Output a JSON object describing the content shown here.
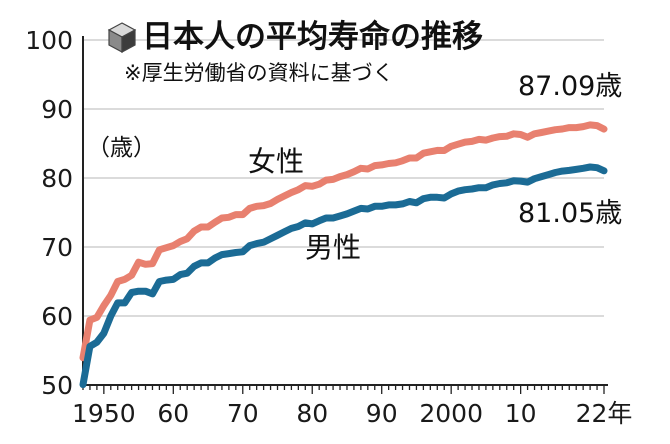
{
  "chart_data": {
    "type": "line",
    "title": "日本人の平均寿命の推移",
    "subtitle": "※厚生労働省の資料に基づく",
    "unit_label": "（歳）",
    "ylim": [
      50,
      100
    ],
    "yticks": [
      50,
      60,
      70,
      80,
      90,
      100
    ],
    "xlim": [
      1947,
      2022
    ],
    "xticks": [
      {
        "value": 1950,
        "label": "1950"
      },
      {
        "value": 1960,
        "label": "60"
      },
      {
        "value": 1970,
        "label": "70"
      },
      {
        "value": 1980,
        "label": "80"
      },
      {
        "value": 1990,
        "label": "90"
      },
      {
        "value": 2000,
        "label": "2000"
      },
      {
        "value": 2010,
        "label": "10"
      },
      {
        "value": 2022,
        "label": "22年"
      }
    ],
    "grid": true,
    "series": [
      {
        "name": "女性",
        "color": "#e8806f",
        "end_label": "87.09歳",
        "points": [
          [
            1947,
            53.96
          ],
          [
            1948,
            59.4
          ],
          [
            1949,
            59.8
          ],
          [
            1950,
            61.5
          ],
          [
            1951,
            63.0
          ],
          [
            1952,
            65.0
          ],
          [
            1953,
            65.3
          ],
          [
            1954,
            65.9
          ],
          [
            1955,
            67.8
          ],
          [
            1956,
            67.5
          ],
          [
            1957,
            67.6
          ],
          [
            1958,
            69.6
          ],
          [
            1959,
            69.9
          ],
          [
            1960,
            70.2
          ],
          [
            1961,
            70.8
          ],
          [
            1962,
            71.2
          ],
          [
            1963,
            72.3
          ],
          [
            1964,
            72.9
          ],
          [
            1965,
            72.9
          ],
          [
            1966,
            73.6
          ],
          [
            1967,
            74.2
          ],
          [
            1968,
            74.3
          ],
          [
            1969,
            74.7
          ],
          [
            1970,
            74.7
          ],
          [
            1971,
            75.6
          ],
          [
            1972,
            75.9
          ],
          [
            1973,
            76.0
          ],
          [
            1974,
            76.3
          ],
          [
            1975,
            76.9
          ],
          [
            1976,
            77.4
          ],
          [
            1977,
            77.9
          ],
          [
            1978,
            78.3
          ],
          [
            1979,
            78.9
          ],
          [
            1980,
            78.8
          ],
          [
            1981,
            79.1
          ],
          [
            1982,
            79.7
          ],
          [
            1983,
            79.8
          ],
          [
            1984,
            80.2
          ],
          [
            1985,
            80.5
          ],
          [
            1986,
            80.9
          ],
          [
            1987,
            81.4
          ],
          [
            1988,
            81.3
          ],
          [
            1989,
            81.8
          ],
          [
            1990,
            81.9
          ],
          [
            1991,
            82.1
          ],
          [
            1992,
            82.2
          ],
          [
            1993,
            82.5
          ],
          [
            1994,
            82.9
          ],
          [
            1995,
            82.9
          ],
          [
            1996,
            83.6
          ],
          [
            1997,
            83.8
          ],
          [
            1998,
            84.0
          ],
          [
            1999,
            83.99
          ],
          [
            2000,
            84.6
          ],
          [
            2001,
            84.9
          ],
          [
            2002,
            85.2
          ],
          [
            2003,
            85.3
          ],
          [
            2004,
            85.6
          ],
          [
            2005,
            85.5
          ],
          [
            2006,
            85.8
          ],
          [
            2007,
            86.0
          ],
          [
            2008,
            86.05
          ],
          [
            2009,
            86.4
          ],
          [
            2010,
            86.3
          ],
          [
            2011,
            85.9
          ],
          [
            2012,
            86.4
          ],
          [
            2013,
            86.6
          ],
          [
            2014,
            86.8
          ],
          [
            2015,
            87.0
          ],
          [
            2016,
            87.1
          ],
          [
            2017,
            87.3
          ],
          [
            2018,
            87.3
          ],
          [
            2019,
            87.45
          ],
          [
            2020,
            87.7
          ],
          [
            2021,
            87.6
          ],
          [
            2022,
            87.09
          ]
        ]
      },
      {
        "name": "男性",
        "color": "#1b6b95",
        "end_label": "81.05歳",
        "points": [
          [
            1947,
            50.06
          ],
          [
            1948,
            55.6
          ],
          [
            1949,
            56.2
          ],
          [
            1950,
            57.5
          ],
          [
            1951,
            60.0
          ],
          [
            1952,
            61.9
          ],
          [
            1953,
            61.9
          ],
          [
            1954,
            63.4
          ],
          [
            1955,
            63.6
          ],
          [
            1956,
            63.6
          ],
          [
            1957,
            63.2
          ],
          [
            1958,
            65.0
          ],
          [
            1959,
            65.2
          ],
          [
            1960,
            65.3
          ],
          [
            1961,
            66.0
          ],
          [
            1962,
            66.2
          ],
          [
            1963,
            67.2
          ],
          [
            1964,
            67.7
          ],
          [
            1965,
            67.7
          ],
          [
            1966,
            68.4
          ],
          [
            1967,
            68.9
          ],
          [
            1968,
            69.05
          ],
          [
            1969,
            69.2
          ],
          [
            1970,
            69.3
          ],
          [
            1971,
            70.2
          ],
          [
            1972,
            70.5
          ],
          [
            1973,
            70.7
          ],
          [
            1974,
            71.2
          ],
          [
            1975,
            71.7
          ],
          [
            1976,
            72.2
          ],
          [
            1977,
            72.7
          ],
          [
            1978,
            72.97
          ],
          [
            1979,
            73.5
          ],
          [
            1980,
            73.35
          ],
          [
            1981,
            73.8
          ],
          [
            1982,
            74.2
          ],
          [
            1983,
            74.2
          ],
          [
            1984,
            74.5
          ],
          [
            1985,
            74.8
          ],
          [
            1986,
            75.2
          ],
          [
            1987,
            75.6
          ],
          [
            1988,
            75.5
          ],
          [
            1989,
            75.9
          ],
          [
            1990,
            75.9
          ],
          [
            1991,
            76.1
          ],
          [
            1992,
            76.1
          ],
          [
            1993,
            76.25
          ],
          [
            1994,
            76.6
          ],
          [
            1995,
            76.4
          ],
          [
            1996,
            77.0
          ],
          [
            1997,
            77.2
          ],
          [
            1998,
            77.2
          ],
          [
            1999,
            77.1
          ],
          [
            2000,
            77.7
          ],
          [
            2001,
            78.1
          ],
          [
            2002,
            78.3
          ],
          [
            2003,
            78.4
          ],
          [
            2004,
            78.6
          ],
          [
            2005,
            78.6
          ],
          [
            2006,
            79.0
          ],
          [
            2007,
            79.2
          ],
          [
            2008,
            79.3
          ],
          [
            2009,
            79.6
          ],
          [
            2010,
            79.55
          ],
          [
            2011,
            79.4
          ],
          [
            2012,
            79.9
          ],
          [
            2013,
            80.2
          ],
          [
            2014,
            80.5
          ],
          [
            2015,
            80.8
          ],
          [
            2016,
            81.0
          ],
          [
            2017,
            81.1
          ],
          [
            2018,
            81.25
          ],
          [
            2019,
            81.4
          ],
          [
            2020,
            81.6
          ],
          [
            2021,
            81.5
          ],
          [
            2022,
            81.05
          ]
        ]
      }
    ],
    "icon": "cube-icon"
  }
}
